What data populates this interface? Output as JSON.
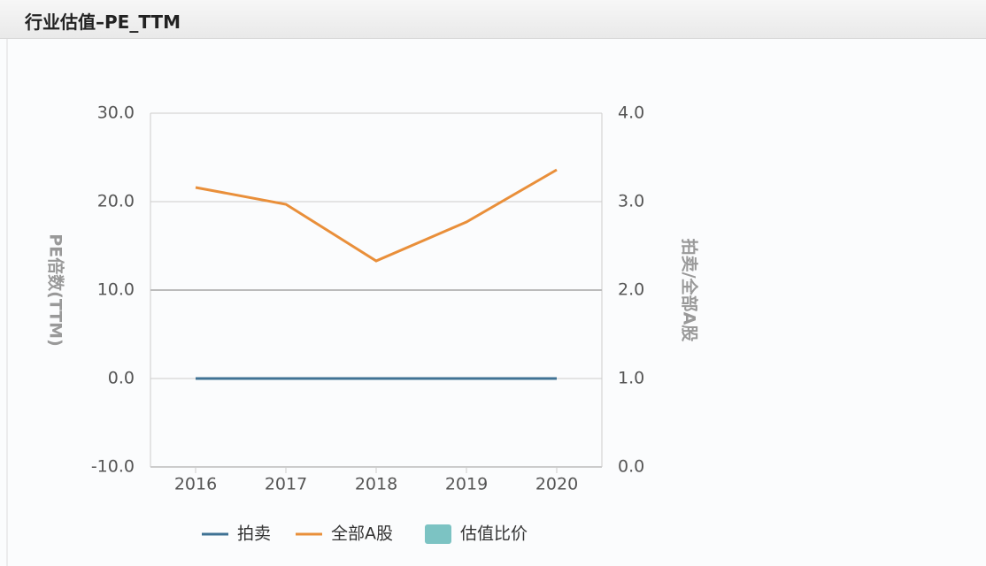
{
  "header": {
    "title": "行业估值–PE_TTM"
  },
  "chart_data": {
    "type": "line",
    "ylabel": "PE倍数(TTM)",
    "y2label": "拍卖/全部A股",
    "categories": [
      "2016",
      "2017",
      "2018",
      "2019",
      "2020"
    ],
    "series": [
      {
        "name": "拍卖",
        "color": "#3f7294",
        "type": "line",
        "values": [
          0,
          0,
          0,
          0,
          0
        ]
      },
      {
        "name": "全部A股",
        "color": "#e98f3a",
        "type": "line",
        "values": [
          21.6,
          19.7,
          13.3,
          17.7,
          23.6
        ]
      },
      {
        "name": "估值比价",
        "color": "#7cc3c3",
        "type": "bar",
        "axis": "y2",
        "values": [
          null,
          null,
          null,
          null,
          null
        ]
      }
    ],
    "ylim": [
      -10,
      30
    ],
    "yticks": [
      {
        "value": 30,
        "label": "30.0"
      },
      {
        "value": 20,
        "label": "20.0"
      },
      {
        "value": 10,
        "label": "10.0"
      },
      {
        "value": 0,
        "label": "0.0"
      },
      {
        "value": -10,
        "label": "-10.0"
      }
    ],
    "y2lim": [
      0,
      4
    ],
    "y2ticks": [
      {
        "value": 4,
        "label": "4.0"
      },
      {
        "value": 3,
        "label": "3.0"
      },
      {
        "value": 2,
        "label": "2.0"
      },
      {
        "value": 1,
        "label": "1.0"
      },
      {
        "value": 0,
        "label": "0.0"
      }
    ],
    "grid": true,
    "legend": "bottom"
  }
}
